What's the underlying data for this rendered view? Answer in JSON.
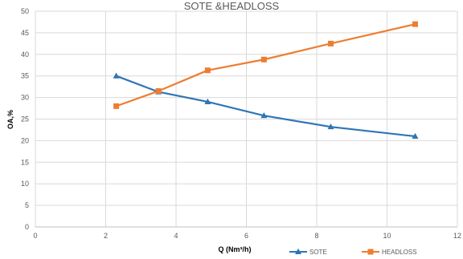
{
  "chart_data": {
    "type": "line",
    "title": "SOTE &HEADLOSS",
    "xlabel": "Q (Nm³/h)",
    "ylabel": "OA,%",
    "xlim": [
      0,
      12
    ],
    "ylim": [
      0,
      50
    ],
    "xticks": [
      0,
      2,
      4,
      6,
      8,
      10,
      12
    ],
    "yticks": [
      0,
      5,
      10,
      15,
      20,
      25,
      30,
      35,
      40,
      45,
      50
    ],
    "grid": true,
    "legend_position": "bottom",
    "series": [
      {
        "name": "SOTE",
        "color": "#2E75B6",
        "marker": "triangle",
        "x": [
          2.3,
          3.5,
          4.9,
          6.5,
          8.4,
          10.8
        ],
        "y": [
          35.0,
          31.3,
          29.0,
          25.8,
          23.2,
          21.0
        ]
      },
      {
        "name": "HEADLOSS",
        "color": "#ED7D31",
        "marker": "square",
        "x": [
          2.3,
          3.5,
          4.9,
          6.5,
          8.4,
          10.8
        ],
        "y": [
          28.0,
          31.5,
          36.3,
          38.8,
          42.5,
          47.0
        ]
      }
    ]
  }
}
